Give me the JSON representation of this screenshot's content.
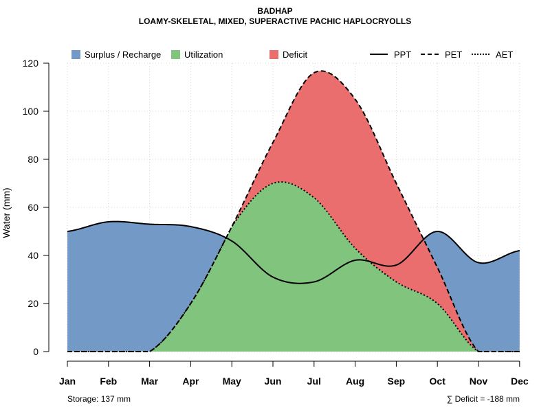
{
  "chart_data": {
    "type": "area",
    "title": "BADHAP",
    "subtitle": "LOAMY-SKELETAL, MIXED, SUPERACTIVE PACHIC HAPLOCRYOLLS",
    "xlabel": "",
    "ylabel": "Water (mm)",
    "ylim": [
      0,
      120
    ],
    "yticks": [
      0,
      20,
      40,
      60,
      80,
      100,
      120
    ],
    "grid": true,
    "categories": [
      "Jan",
      "Feb",
      "Mar",
      "Apr",
      "May",
      "Jun",
      "Jul",
      "Aug",
      "Sep",
      "Oct",
      "Nov",
      "Dec"
    ],
    "series": [
      {
        "name": "PPT",
        "style": "solid",
        "values": [
          50,
          54,
          53,
          52,
          46,
          31,
          29,
          38,
          36,
          50,
          37,
          42
        ]
      },
      {
        "name": "PET",
        "style": "dashed",
        "values": [
          0,
          0,
          0,
          20,
          52,
          87,
          116,
          105,
          70,
          35,
          0,
          0
        ]
      },
      {
        "name": "AET",
        "style": "dotted",
        "values": [
          0,
          0,
          0,
          20,
          52,
          70,
          64,
          43,
          29,
          20,
          0,
          0
        ]
      }
    ],
    "areas": [
      {
        "name": "Surplus / Recharge",
        "color": "#7399c6"
      },
      {
        "name": "Utilization",
        "color": "#80c47d"
      },
      {
        "name": "Deficit",
        "color": "#eb6e6e"
      }
    ],
    "legend_position": "top",
    "storage_label": "Storage: 137 mm",
    "deficit_label": "∑ Deficit = -188 mm"
  }
}
